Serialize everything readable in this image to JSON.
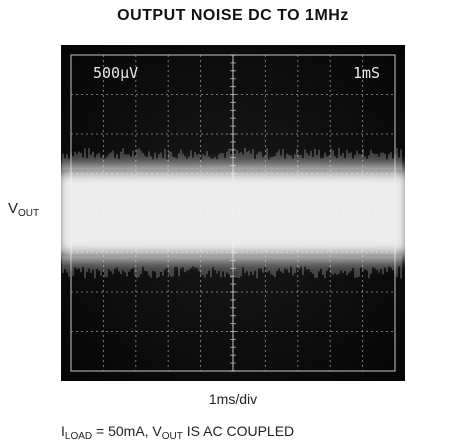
{
  "chart_data": {
    "type": "scope_trace",
    "title": "OUTPUT NOISE DC TO 1MHz",
    "ylabel": {
      "main": "V",
      "sub": "OUT"
    },
    "xlabel": "1ms/div",
    "vertical_scale": "500μV",
    "horizontal_scale": "1mS",
    "grid": {
      "divisions_x": 10,
      "divisions_y": 8
    },
    "trace": {
      "description_units": "divisions",
      "center_div": 0.0,
      "band_top_div": 1.25,
      "band_bottom_div": -1.25
    },
    "colors": {
      "screen": "#0a0a0a",
      "trace": "#f2f2f2",
      "grid": "#cfcfcf"
    }
  },
  "note": {
    "i_main": "I",
    "i_sub": "LOAD",
    "load_text": " = 50mA, V",
    "vout_sub": "OUT",
    "coupling_text": " IS AC COUPLED"
  }
}
